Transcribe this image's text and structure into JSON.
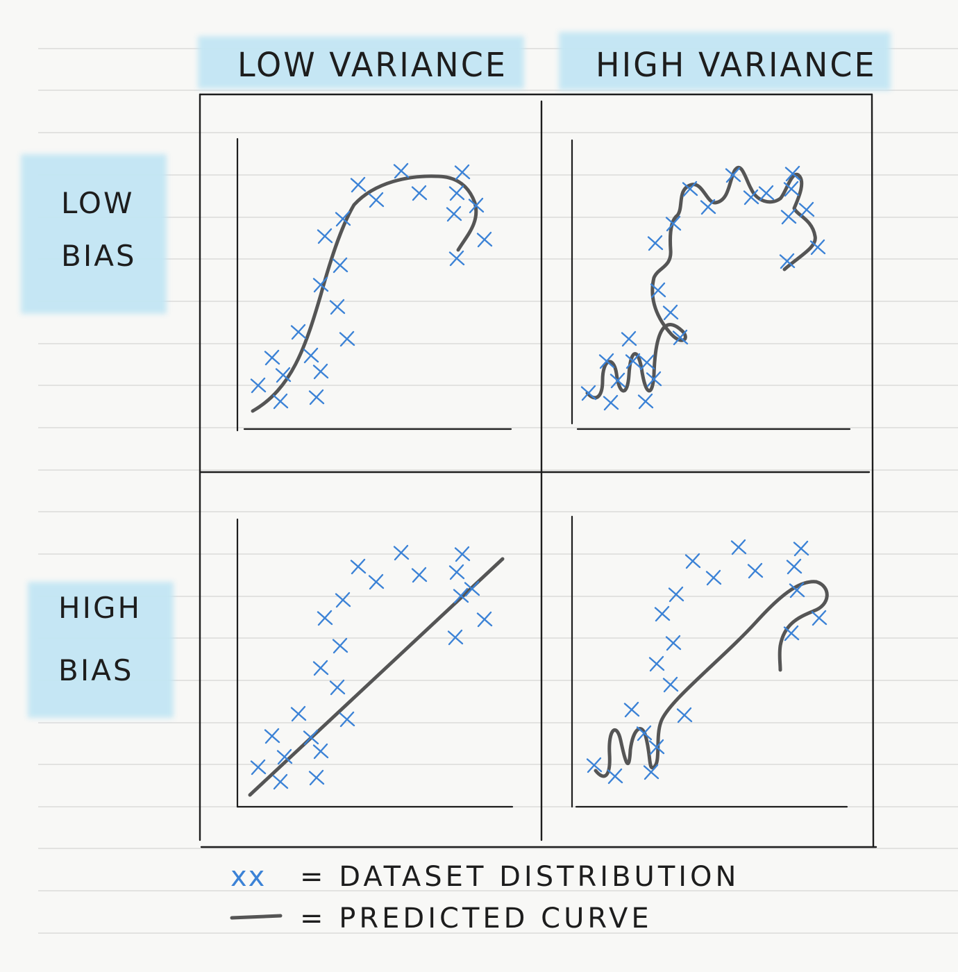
{
  "columns": [
    "LOW VARIANCE",
    "HIGH VARIANCE"
  ],
  "rows": [
    {
      "line1": "LOW",
      "line2": "BIAS"
    },
    {
      "line1": "HIGH",
      "line2": "BIAS"
    }
  ],
  "legend": {
    "dataset_symbol": "xx",
    "dataset_label": "= DATASET DISTRIBUTION",
    "curve_label": "= PREDICTED CURVE"
  },
  "colors": {
    "marks": "#3b82d6",
    "curve": "#555555",
    "highlight": "#c3e6f4",
    "ink": "#1d1d1d"
  }
}
